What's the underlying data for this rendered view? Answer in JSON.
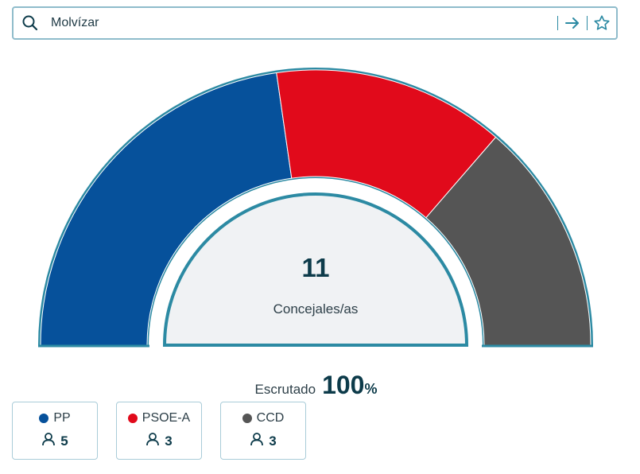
{
  "search": {
    "query": "Molvízar",
    "icons": [
      "search-icon",
      "arrow-right-icon",
      "star-icon"
    ]
  },
  "center": {
    "total": "11",
    "label": "Concejales/as"
  },
  "scrutiny": {
    "label": "Escrutado",
    "value": "100",
    "unit": "%"
  },
  "parties": [
    {
      "name": "PP",
      "seats": "5",
      "color": "#06519b"
    },
    {
      "name": "PSOE-A",
      "seats": "3",
      "color": "#e10a1b"
    },
    {
      "name": "CCD",
      "seats": "3",
      "color": "#555555"
    }
  ],
  "colors": {
    "accent": "#2c8aa3",
    "text": "#0d3b4a"
  },
  "chart_data": {
    "type": "pie",
    "shape": "half-donut",
    "categories": [
      "PP",
      "PSOE-A",
      "CCD"
    ],
    "values": [
      5,
      3,
      3
    ],
    "total": 11
  }
}
